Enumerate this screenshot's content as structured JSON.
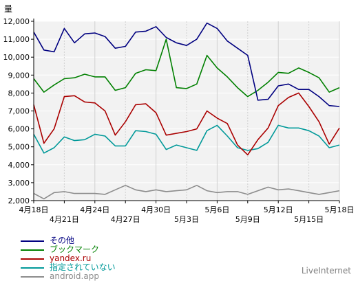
{
  "chart_data": {
    "type": "line",
    "ylabel": "量",
    "ylim": [
      2000,
      12000
    ],
    "yticks": [
      "2,000",
      "3,000",
      "4,000",
      "5,000",
      "6,000",
      "7,000",
      "8,000",
      "9,000",
      "10,000",
      "11,000",
      "12,000"
    ],
    "x_tick_labels_top": [
      "4月18日",
      "4月24日",
      "4月30日",
      "5月6日",
      "5月12日",
      "5月18日"
    ],
    "x_tick_labels_bottom": [
      "4月21日",
      "4月27日",
      "5月3日",
      "5月9日",
      "5月15日"
    ],
    "grid": true,
    "legend_position": "bottom-left",
    "x": [
      "4/18",
      "4/19",
      "4/20",
      "4/21",
      "4/22",
      "4/23",
      "4/24",
      "4/25",
      "4/26",
      "4/27",
      "4/28",
      "4/29",
      "4/30",
      "5/1",
      "5/2",
      "5/3",
      "5/4",
      "5/5",
      "5/6",
      "5/7",
      "5/8",
      "5/9",
      "5/10",
      "5/11",
      "5/12",
      "5/13",
      "5/14",
      "5/15",
      "5/16",
      "5/17",
      "5/18"
    ],
    "series": [
      {
        "name": "その他",
        "color": "#000080",
        "values": [
          11400,
          10400,
          10300,
          11600,
          10800,
          11300,
          11350,
          11150,
          10500,
          10600,
          11400,
          11450,
          11700,
          11100,
          10800,
          10650,
          11000,
          11900,
          11600,
          10900,
          10500,
          10100,
          7600,
          7650,
          8400,
          8500,
          8200,
          8200,
          7800,
          7300,
          7250
        ]
      },
      {
        "name": "ブックマーク",
        "color": "#008000",
        "values": [
          8800,
          8050,
          8450,
          8800,
          8850,
          9050,
          8900,
          8900,
          8150,
          8300,
          9100,
          9300,
          9250,
          11000,
          8300,
          8250,
          8500,
          10100,
          9400,
          8900,
          8300,
          7800,
          8150,
          8600,
          9150,
          9100,
          9400,
          9150,
          8850,
          8050,
          8300
        ]
      },
      {
        "name": "yandex.ru",
        "color": "#aa0000",
        "values": [
          7350,
          5200,
          6000,
          7800,
          7850,
          7500,
          7450,
          7000,
          5650,
          6400,
          7350,
          7400,
          6900,
          5650,
          5750,
          5850,
          6000,
          7000,
          6600,
          6300,
          5100,
          4550,
          5400,
          6050,
          7300,
          7750,
          8000,
          7250,
          6400,
          5150,
          6050
        ]
      },
      {
        "name": "指定されていない",
        "color": "#009999",
        "values": [
          5700,
          4650,
          4950,
          5550,
          5350,
          5400,
          5700,
          5600,
          5050,
          5050,
          5900,
          5850,
          5700,
          4850,
          5100,
          4950,
          4800,
          5900,
          6200,
          5600,
          4950,
          4800,
          4900,
          5250,
          6200,
          6050,
          6050,
          5900,
          5600,
          4950,
          5100
        ]
      },
      {
        "name": "android.app",
        "color": "#8c8c8c",
        "values": [
          2400,
          2100,
          2450,
          2500,
          2400,
          2400,
          2400,
          2350,
          2600,
          2850,
          2600,
          2500,
          2600,
          2500,
          2550,
          2600,
          2850,
          2550,
          2450,
          2500,
          2500,
          2350,
          2550,
          2750,
          2600,
          2650,
          2550,
          2450,
          2350,
          2450,
          2550
        ]
      }
    ]
  },
  "footer": {
    "brand": "LiveInternet"
  }
}
